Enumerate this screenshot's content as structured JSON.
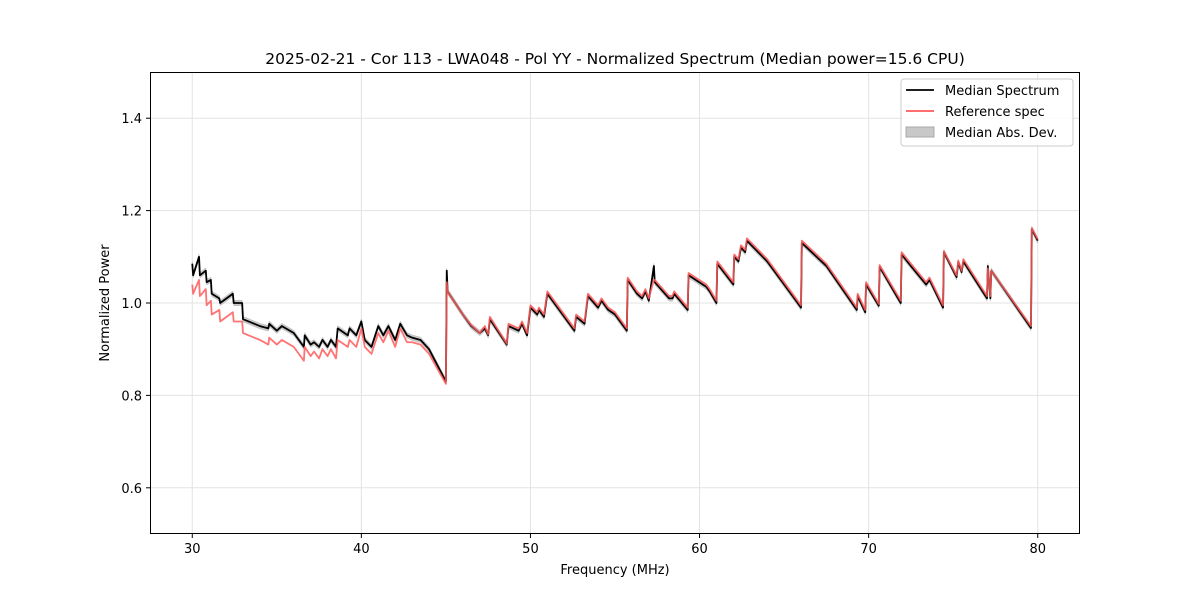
{
  "chart_data": {
    "type": "line",
    "title": "2025-02-21 - Cor 113 - LWA048 - Pol YY - Normalized Spectrum (Median power=15.6 CPU)",
    "xlabel": "Frequency (MHz)",
    "ylabel": "Normalized Power",
    "xlim": [
      27.5,
      82.5
    ],
    "ylim": [
      0.5,
      1.5
    ],
    "xticks": [
      30,
      40,
      50,
      60,
      70,
      80
    ],
    "xtick_labels": [
      "30",
      "40",
      "50",
      "60",
      "70",
      "80"
    ],
    "yticks": [
      0.6,
      0.8,
      1.0,
      1.2,
      1.4
    ],
    "ytick_labels": [
      "0.6",
      "0.8",
      "1.0",
      "1.2",
      "1.4"
    ],
    "grid": true,
    "legend_position": "top-right",
    "legend": [
      "Median Spectrum",
      "Reference spec",
      "Median Abs. Dev."
    ],
    "colors": {
      "median": "#000000",
      "reference": "#ff5a5a",
      "mad": "#c8c8c8"
    },
    "mad_halfwidth": 0.006,
    "x": [
      30.0,
      30.05,
      30.4,
      30.45,
      30.8,
      30.85,
      31.1,
      31.15,
      31.6,
      31.65,
      32.4,
      32.45,
      32.95,
      33.0,
      34.0,
      34.5,
      34.55,
      35.0,
      35.3,
      36.0,
      36.6,
      36.65,
      37.0,
      37.2,
      37.5,
      37.7,
      38.0,
      38.2,
      38.5,
      38.6,
      39.2,
      39.3,
      39.7,
      40.0,
      40.2,
      40.6,
      41.0,
      41.3,
      41.6,
      42.0,
      42.3,
      42.7,
      43.0,
      43.5,
      44.0,
      45.0,
      45.05,
      45.1,
      46.0,
      46.5,
      47.0,
      47.3,
      47.5,
      47.6,
      48.6,
      48.7,
      49.3,
      49.5,
      49.8,
      50.0,
      50.4,
      50.5,
      50.8,
      51.0,
      52.0,
      52.6,
      52.7,
      53.2,
      53.4,
      54.0,
      54.2,
      54.6,
      55.0,
      55.7,
      55.75,
      56.3,
      56.6,
      56.8,
      57.0,
      57.3,
      57.35,
      58.2,
      58.4,
      58.5,
      59.3,
      59.35,
      60.4,
      60.6,
      61.0,
      61.05,
      62.0,
      62.05,
      62.3,
      62.45,
      62.7,
      62.8,
      64.0,
      65.0,
      66.0,
      66.05,
      67.5,
      69.3,
      69.35,
      69.8,
      69.85,
      70.6,
      70.65,
      71.9,
      71.95,
      72.5,
      73.4,
      73.6,
      74.4,
      74.45,
      75.2,
      75.3,
      75.5,
      75.6,
      77.0,
      77.05,
      77.2,
      77.25,
      79.6,
      79.65,
      80.0
    ],
    "median": [
      1.085,
      1.06,
      1.1,
      1.06,
      1.07,
      1.045,
      1.05,
      1.02,
      1.01,
      1.0,
      1.02,
      1.0,
      1.0,
      0.965,
      0.95,
      0.945,
      0.955,
      0.94,
      0.95,
      0.935,
      0.905,
      0.93,
      0.91,
      0.915,
      0.905,
      0.92,
      0.905,
      0.92,
      0.905,
      0.945,
      0.93,
      0.945,
      0.93,
      0.96,
      0.92,
      0.905,
      0.95,
      0.93,
      0.95,
      0.92,
      0.955,
      0.93,
      0.925,
      0.92,
      0.9,
      0.83,
      1.07,
      1.025,
      0.975,
      0.95,
      0.935,
      0.945,
      0.93,
      0.965,
      0.91,
      0.95,
      0.94,
      0.955,
      0.93,
      0.99,
      0.975,
      0.985,
      0.97,
      1.02,
      0.97,
      0.94,
      0.97,
      0.955,
      1.015,
      0.99,
      1.005,
      0.985,
      0.975,
      0.94,
      1.05,
      1.02,
      1.01,
      1.025,
      1.005,
      1.08,
      1.045,
      1.01,
      1.01,
      1.02,
      0.985,
      1.06,
      1.035,
      1.025,
      1.0,
      1.085,
      1.04,
      1.1,
      1.09,
      1.12,
      1.11,
      1.135,
      1.09,
      1.04,
      0.99,
      1.13,
      1.08,
      0.985,
      1.015,
      0.98,
      1.04,
      0.994,
      1.078,
      1.0,
      1.105,
      1.08,
      1.04,
      1.05,
      0.99,
      1.11,
      1.056,
      1.088,
      1.067,
      1.09,
      1.01,
      1.08,
      1.01,
      1.07,
      0.946,
      1.16,
      1.135
    ],
    "reference": [
      1.04,
      1.02,
      1.05,
      1.015,
      1.03,
      0.995,
      1.005,
      0.975,
      0.985,
      0.96,
      0.98,
      0.96,
      0.96,
      0.935,
      0.92,
      0.91,
      0.925,
      0.91,
      0.92,
      0.905,
      0.875,
      0.905,
      0.885,
      0.895,
      0.88,
      0.9,
      0.885,
      0.9,
      0.88,
      0.92,
      0.905,
      0.92,
      0.905,
      0.945,
      0.905,
      0.89,
      0.935,
      0.915,
      0.94,
      0.905,
      0.945,
      0.915,
      0.915,
      0.91,
      0.89,
      0.825,
      1.045,
      1.025,
      0.975,
      0.952,
      0.935,
      0.95,
      0.932,
      0.97,
      0.912,
      0.955,
      0.945,
      0.96,
      0.935,
      0.995,
      0.98,
      0.99,
      0.975,
      1.025,
      0.975,
      0.945,
      0.975,
      0.96,
      1.02,
      0.995,
      1.01,
      0.99,
      0.98,
      0.945,
      1.055,
      1.025,
      1.015,
      1.03,
      1.01,
      1.05,
      1.05,
      1.015,
      1.015,
      1.025,
      0.99,
      1.065,
      1.04,
      1.03,
      1.005,
      1.09,
      1.045,
      1.105,
      1.095,
      1.125,
      1.115,
      1.14,
      1.095,
      1.045,
      0.995,
      1.135,
      1.085,
      0.99,
      1.02,
      0.985,
      1.045,
      0.998,
      1.082,
      1.005,
      1.11,
      1.085,
      1.045,
      1.055,
      0.995,
      1.112,
      1.06,
      1.092,
      1.07,
      1.095,
      1.015,
      1.075,
      1.015,
      1.07,
      0.95,
      1.162,
      1.138
    ]
  }
}
